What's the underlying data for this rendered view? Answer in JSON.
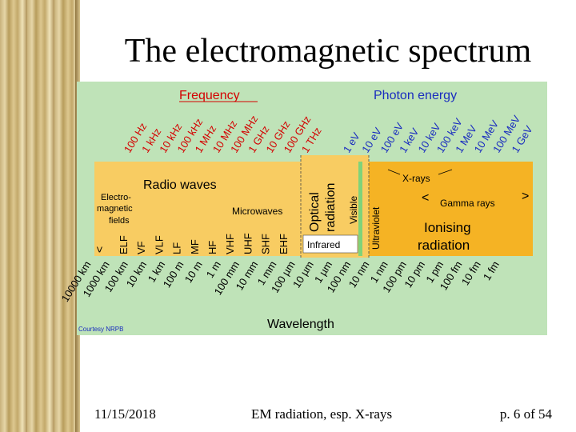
{
  "slide": {
    "title": "The electromagnetic spectrum",
    "date": "11/15/2018",
    "caption": "EM radiation, esp. X-rays",
    "page": "p. 6 of 54"
  },
  "diagram": {
    "frequency_header": "Frequency",
    "photon_energy_header": "Photon energy",
    "wavelength_header": "Wavelength",
    "credit": "Courtesy NRPB",
    "frequency_ticks": [
      "100 Hz",
      "1 kHz",
      "10 kHz",
      "100 kHz",
      "1 MHz",
      "10 MHz",
      "100 MHz",
      "1 GHz",
      "10 GHz",
      "100 GHz",
      "1 THz"
    ],
    "energy_ticks": [
      "1 eV",
      "10 eV",
      "100 eV",
      "1 keV",
      "10 keV",
      "100 keV",
      "1 MeV",
      "10 MeV",
      "100 MeV",
      "1 GeV"
    ],
    "wavelength_ticks": [
      "10000 km",
      "1000 km",
      "100 km",
      "10 km",
      "1 km",
      "100 m",
      "10 m",
      "1 m",
      "100 mm",
      "10 mm",
      "1 mm",
      "100 µm",
      "10 µm",
      "1 µm",
      "100 nm",
      "10 nm",
      "1 nm",
      "100 pm",
      "10 pm",
      "1 pm",
      "100 fm",
      "10 fm",
      "1 fm"
    ],
    "bands": [
      "ELF",
      "VF",
      "VLF",
      "LF",
      "MF",
      "HF",
      "VHF",
      "UHF",
      "SHF",
      "EHF"
    ],
    "labels": {
      "radio_waves": "Radio waves",
      "em_fields": [
        "Electro-",
        "magnetic",
        "fields"
      ],
      "microwaves": "Microwaves",
      "optical": [
        "Optical",
        "radiation"
      ],
      "visible": "Visible",
      "ultraviolet": "Ultraviolet",
      "infrared": "Infrared",
      "xrays": "X-rays",
      "gamma": "Gamma rays",
      "ionising": [
        "Ionising",
        "radiation"
      ],
      "lt": "<",
      "gt": ">"
    },
    "colors": {
      "background": "#bfe3b8",
      "band": "#f5b324",
      "band_light": "#f8cc62",
      "frequency": "#d40000",
      "energy": "#1a2dbf",
      "text": "#000000"
    }
  }
}
